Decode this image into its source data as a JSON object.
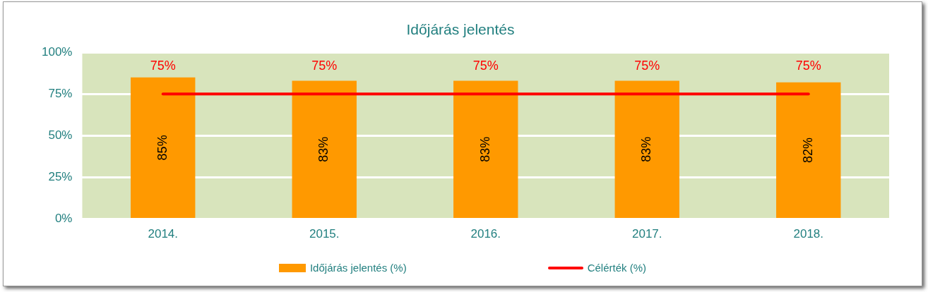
{
  "chart_data": {
    "type": "bar",
    "title": "Időjárás jelentés",
    "categories": [
      "2014.",
      "2015.",
      "2016.",
      "2017.",
      "2018."
    ],
    "series": [
      {
        "name": "Időjárás jelentés (%)",
        "color": "#ff9900",
        "values": [
          85,
          83,
          83,
          83,
          82
        ],
        "value_labels": [
          "85%",
          "83%",
          "83%",
          "83%",
          "82%"
        ]
      },
      {
        "name": "Célérték (%)",
        "type": "line",
        "color": "#ff0000",
        "values": [
          75,
          75,
          75,
          75,
          75
        ],
        "value_labels": [
          "75%",
          "75%",
          "75%",
          "75%",
          "75%"
        ]
      }
    ],
    "ylim": [
      0,
      100
    ],
    "yticks": [
      {
        "value": 0,
        "label": "0%"
      },
      {
        "value": 25,
        "label": "25%"
      },
      {
        "value": 50,
        "label": "50%"
      },
      {
        "value": 75,
        "label": "75%"
      },
      {
        "value": 100,
        "label": "100%"
      }
    ],
    "grid": "y",
    "legend": "bottom"
  }
}
